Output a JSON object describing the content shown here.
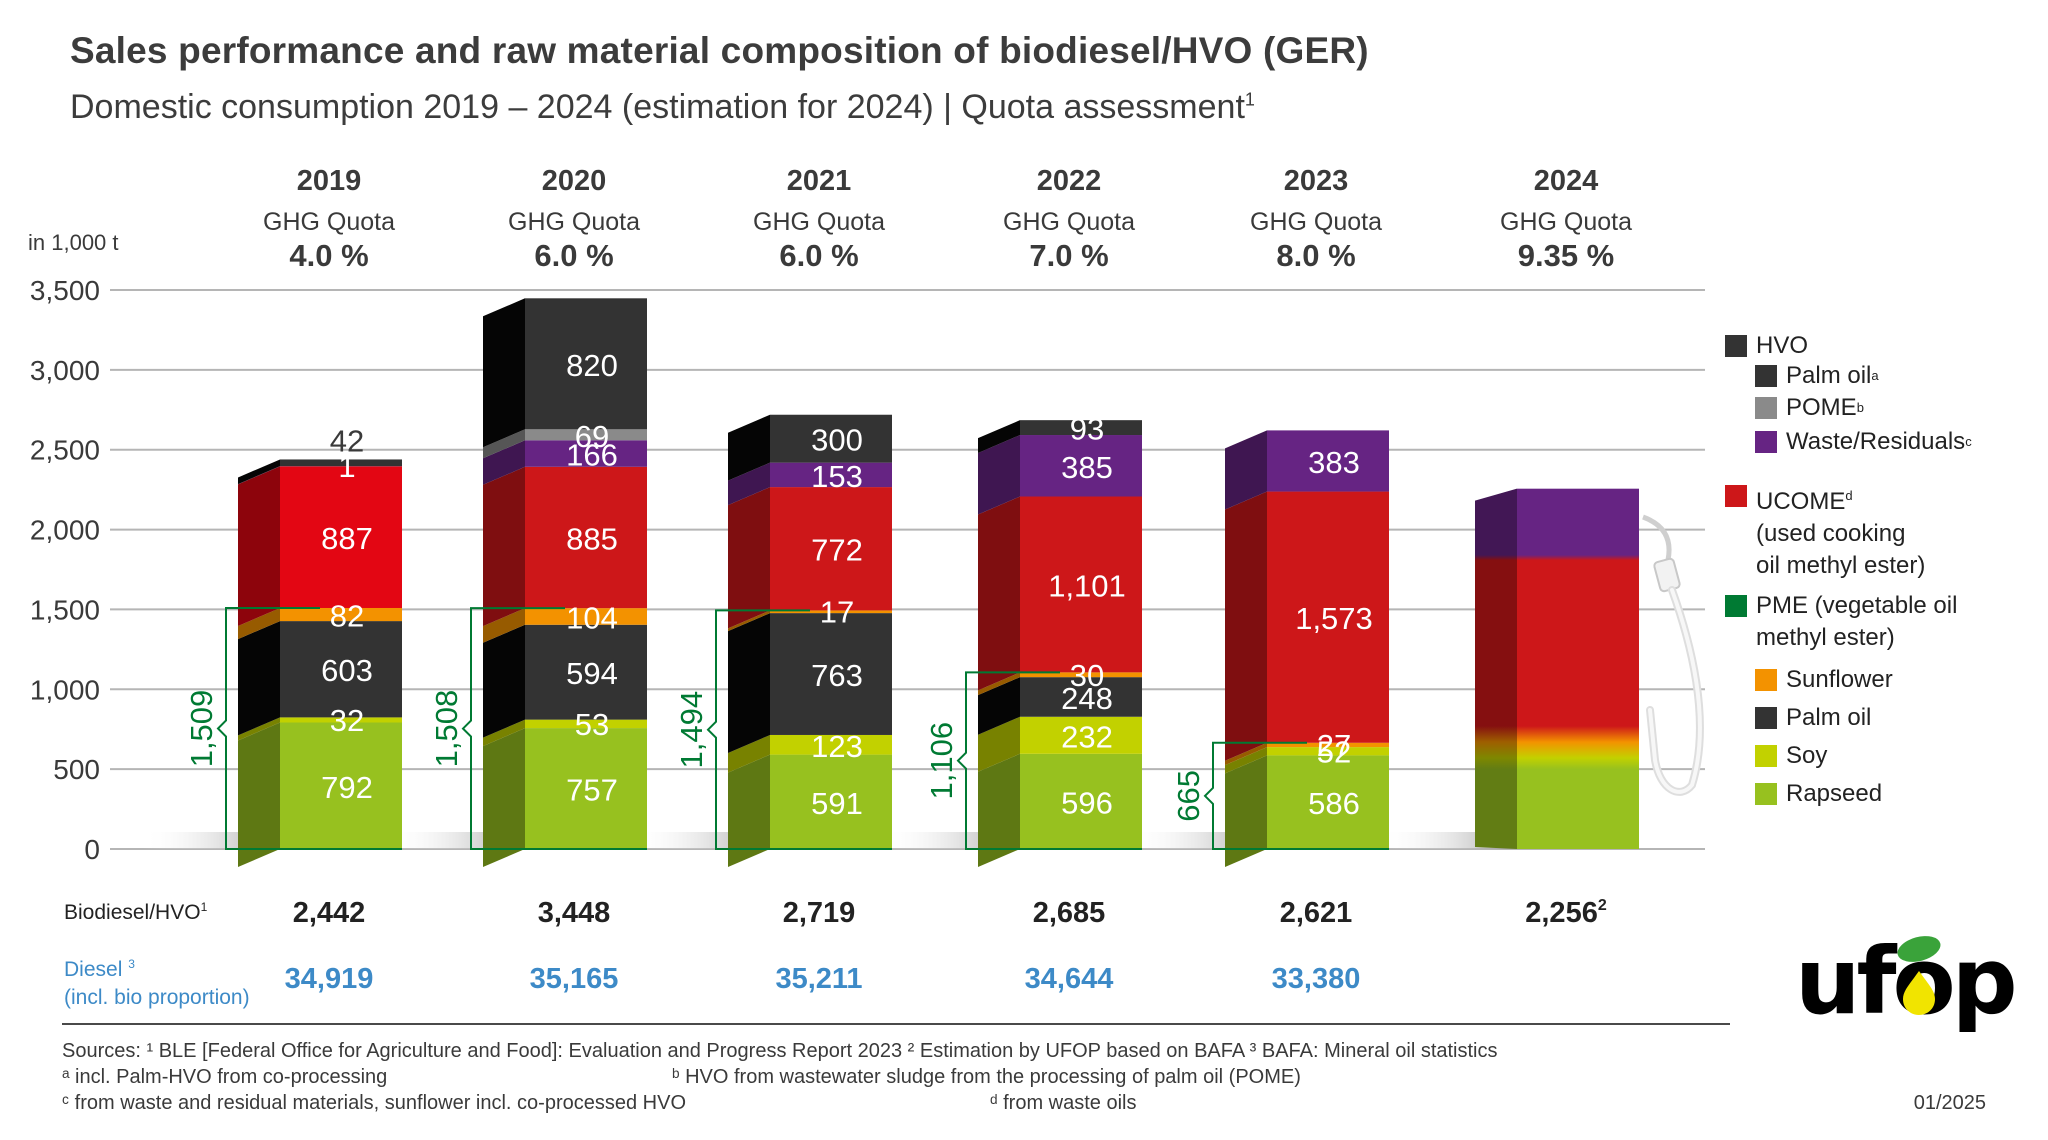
{
  "header": {
    "title": "Sales performance and raw material composition of biodiesel/HVO (GER)",
    "subtitle": "Domestic consumption 2019 – 2024 (estimation for 2024) | Quota assessment",
    "subtitle_sup": "1"
  },
  "colors": {
    "hvo_palm": "#333333",
    "pome": "#8a8a8a",
    "waste": "#662483",
    "ucome": "#cd1719",
    "ucome_2019": "#e30613",
    "pme_green": "#007a33",
    "sunflower": "#f39200",
    "pme_palm": "#333333",
    "soy": "#c2d100",
    "rapeseed": "#97c11f",
    "diesel_blue": "#3d8ac7"
  },
  "legend": {
    "hvo": "HVO",
    "hvo_palm": "Palm oil",
    "hvo_palm_sup": "a",
    "pome": "POME",
    "pome_sup": "b",
    "waste": "Waste/Residuals",
    "waste_sup": "c",
    "ucome_1": "UCOME",
    "ucome_sup": "d",
    "ucome_2": "(used cooking",
    "ucome_3": "oil methyl ester)",
    "pme_1": "PME (vegetable oil",
    "pme_2": "methyl ester)",
    "sunflower": "Sunflower",
    "pme_palm": "Palm oil",
    "soy": "Soy",
    "rapeseed": "Rapseed"
  },
  "rows": {
    "biodiesel_label": "Biodiesel/HVO",
    "biodiesel_sup": "1",
    "diesel_label_1": "Diesel",
    "diesel_sup": "3",
    "diesel_label_2": "(incl. bio proportion)"
  },
  "chart_data": {
    "type": "bar",
    "stacked": true,
    "title": "Sales performance and raw material composition of biodiesel/HVO (GER)",
    "ylabel": "in 1,000 t",
    "ylim": [
      0,
      3500
    ],
    "yticks": [
      0,
      500,
      1000,
      1500,
      2000,
      2500,
      3000,
      3500
    ],
    "ytick_labels": [
      "0",
      "500",
      "1,000",
      "1,500",
      "2,000",
      "2,500",
      "3,000",
      "3,500"
    ],
    "grid": true,
    "legend_position": "right",
    "categories": [
      "2019",
      "2020",
      "2021",
      "2022",
      "2023",
      "2024"
    ],
    "quota_label": "GHG Quota",
    "quotas": [
      "4.0 %",
      "6.0 %",
      "6.0 %",
      "7.0 %",
      "8.0 %",
      "9.35 %"
    ],
    "series": [
      {
        "key": "rapeseed",
        "name": "Rapseed (PME)",
        "values": [
          792,
          757,
          591,
          596,
          586,
          null
        ],
        "labels": [
          "792",
          "757",
          "591",
          "596",
          "586",
          ""
        ]
      },
      {
        "key": "soy",
        "name": "Soy (PME)",
        "values": [
          32,
          53,
          123,
          232,
          52,
          null
        ],
        "labels": [
          "32",
          "53",
          "123",
          "232",
          "52",
          ""
        ]
      },
      {
        "key": "pme_palm",
        "name": "Palm oil (PME)",
        "values": [
          603,
          594,
          763,
          248,
          0,
          null
        ],
        "labels": [
          "603",
          "594",
          "763",
          "248",
          "",
          ""
        ]
      },
      {
        "key": "sunflower",
        "name": "Sunflower (PME)",
        "values": [
          82,
          104,
          17,
          30,
          27,
          null
        ],
        "labels": [
          "82",
          "104",
          "17",
          "30",
          "27",
          ""
        ]
      },
      {
        "key": "ucome",
        "name": "UCOME",
        "values": [
          887,
          885,
          772,
          1101,
          1573,
          null
        ],
        "labels": [
          "887",
          "885",
          "772",
          "1,101",
          "1,573",
          ""
        ]
      },
      {
        "key": "waste",
        "name": "Waste/Residuals (HVO)",
        "values": [
          1,
          166,
          153,
          385,
          383,
          null
        ],
        "labels": [
          "1",
          "166",
          "153",
          "385",
          "383",
          ""
        ]
      },
      {
        "key": "pome",
        "name": "POME (HVO)",
        "values": [
          0,
          69,
          0,
          0,
          0,
          null
        ],
        "labels": [
          "",
          "69",
          "",
          "",
          "",
          ""
        ]
      },
      {
        "key": "hvo_palm",
        "name": "Palm oil (HVO)",
        "values": [
          42,
          820,
          300,
          93,
          0,
          null
        ],
        "labels": [
          "42",
          "820",
          "300",
          "93",
          "",
          ""
        ]
      }
    ],
    "estimate_2024_gradient": {
      "rapeseed_top": 500,
      "transition": 650,
      "ucome_top": 1830,
      "total": 2256
    },
    "pme_totals": [
      "1,509",
      "1,508",
      "1,494",
      "1,106",
      "665",
      null
    ],
    "biodiesel_totals": [
      "2,442",
      "3,448",
      "2,719",
      "2,685",
      "2,621",
      "2,256"
    ],
    "biodiesel_total_sups": [
      "",
      "",
      "",
      "",
      "",
      "2"
    ],
    "diesel_totals": [
      "34,919",
      "35,165",
      "35,211",
      "34,644",
      "33,380",
      ""
    ]
  },
  "footer": {
    "line1": "Sources: ¹ BLE [Federal Office for Agriculture and Food]: Evaluation and Progress Report 2023    ² Estimation by UFOP based on BAFA  ³ BAFA: Mineral oil statistics",
    "line2a": "ᵃ incl. Palm-HVO from co-processing",
    "line2b": "ᵇ HVO from wastewater sludge from the processing of palm oil (POME)",
    "line3a": "ᶜ from waste and residual materials, sunflower incl. co-processed HVO",
    "line3b": "ᵈ from waste oils",
    "date": "01/2025"
  },
  "logo": {
    "text": "ufop"
  }
}
